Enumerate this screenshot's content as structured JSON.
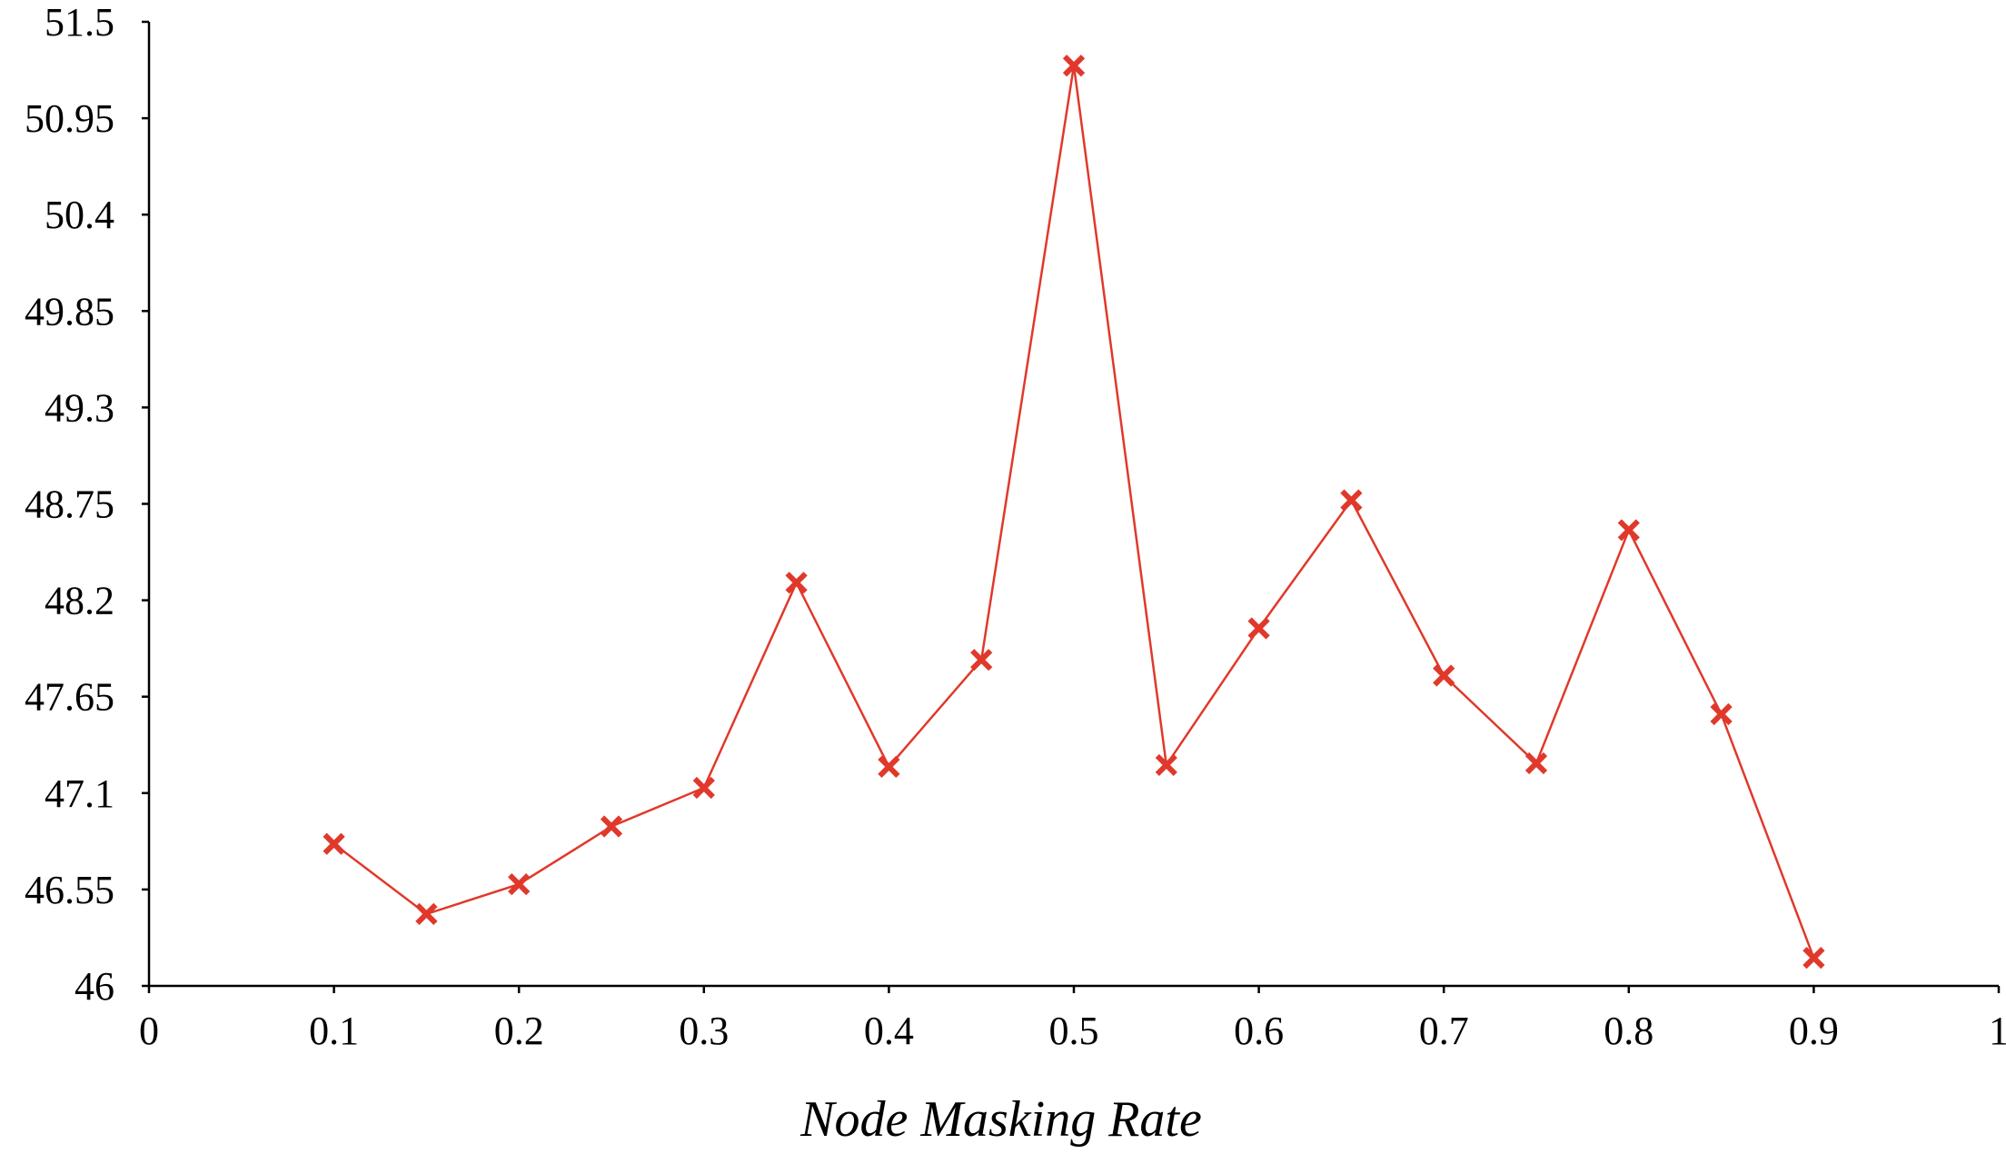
{
  "chart_data": {
    "type": "line",
    "title": "",
    "xlabel": "Node Masking Rate",
    "ylabel": "",
    "xlim": [
      0,
      1
    ],
    "ylim": [
      46,
      51.5
    ],
    "x_ticks": [
      "0",
      "0.1",
      "0.2",
      "0.3",
      "0.4",
      "0.5",
      "0.6",
      "0.7",
      "0.8",
      "0.9",
      "1"
    ],
    "y_ticks": [
      "46",
      "46.55",
      "47.1",
      "47.65",
      "48.2",
      "48.75",
      "49.3",
      "49.85",
      "50.4",
      "50.95",
      "51.5"
    ],
    "grid": false,
    "legend": "none",
    "series": [
      {
        "color": "#e0392b",
        "marker": "x",
        "x": [
          0.1,
          0.15,
          0.2,
          0.25,
          0.3,
          0.35,
          0.4,
          0.45,
          0.5,
          0.55,
          0.6,
          0.65,
          0.7,
          0.75,
          0.8,
          0.85,
          0.9
        ],
        "y": [
          46.81,
          46.41,
          46.58,
          46.91,
          47.13,
          48.3,
          47.25,
          47.86,
          51.25,
          47.26,
          48.04,
          48.77,
          47.77,
          47.27,
          48.6,
          47.55,
          46.16
        ]
      }
    ]
  }
}
